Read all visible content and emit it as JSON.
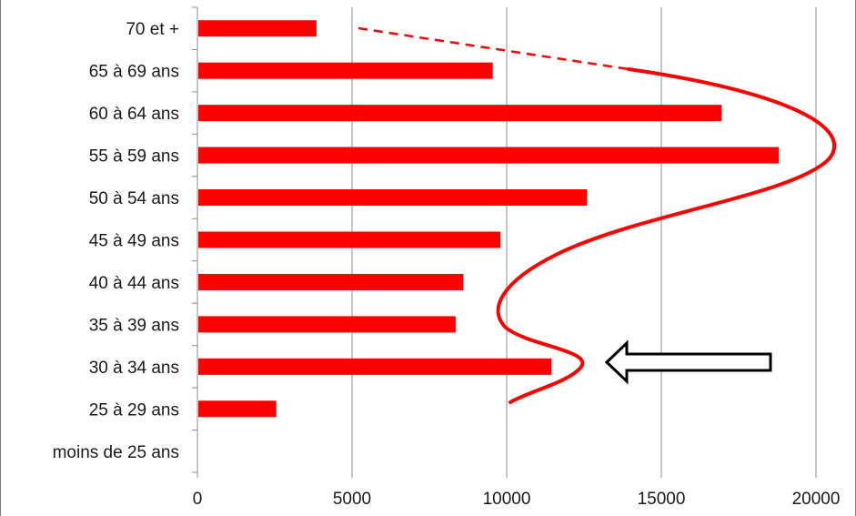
{
  "chart_data": {
    "type": "bar",
    "orientation": "horizontal",
    "title": "",
    "xlabel": "",
    "ylabel": "",
    "categories": [
      "moins de 25 ans",
      "25 à 29 ans",
      "30 à 34 ans",
      "35 à 39 ans",
      "40 à 44 ans",
      "45 à 49 ans",
      "50 à 54 ans",
      "55 à 59 ans",
      "60 à 64 ans",
      "65 à 69 ans",
      "70 et +"
    ],
    "values": [
      0,
      2550,
      11450,
      8350,
      8600,
      9800,
      12600,
      18800,
      16950,
      9550,
      3850
    ],
    "xlim": [
      0,
      20000
    ],
    "xticks": [
      "0",
      "5000",
      "10000",
      "15000",
      "20000"
    ],
    "grid": "vertical",
    "legend": "none",
    "bar_color": "#ff0000",
    "annotations": [
      {
        "kind": "curve",
        "style": "solid + dashed",
        "color": "#ff0000"
      },
      {
        "kind": "arrow",
        "direction": "left",
        "color": "#000000",
        "target": "30 à 34 ans"
      }
    ]
  }
}
